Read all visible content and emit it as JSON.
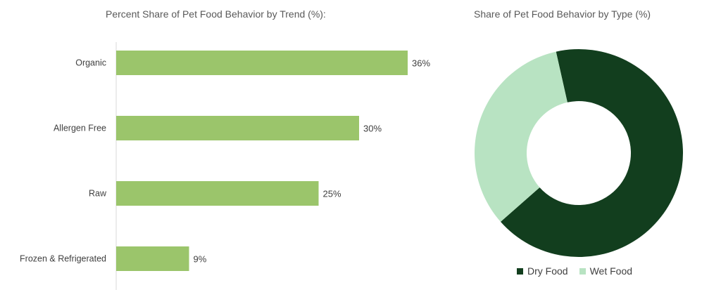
{
  "chart_data": [
    {
      "type": "bar",
      "orientation": "horizontal",
      "title": "Percent Share of Pet Food Behavior by Trend (%):",
      "categories": [
        "Organic",
        "Allergen Free",
        "Raw",
        "Frozen & Refrigerated"
      ],
      "values": [
        36,
        30,
        25,
        9
      ],
      "value_labels": [
        "36%",
        "30%",
        "25%",
        "9%"
      ],
      "color": "#9bc56b",
      "grid": false
    },
    {
      "type": "pie",
      "style": "donut",
      "title": "Share of Pet Food Behavior by Type (%)",
      "labels": [
        "Dry Food",
        "Wet Food"
      ],
      "values": [
        67,
        33
      ],
      "colors": [
        "#123e1e",
        "#b8e3c2"
      ],
      "legend_position": "bottom"
    }
  ]
}
